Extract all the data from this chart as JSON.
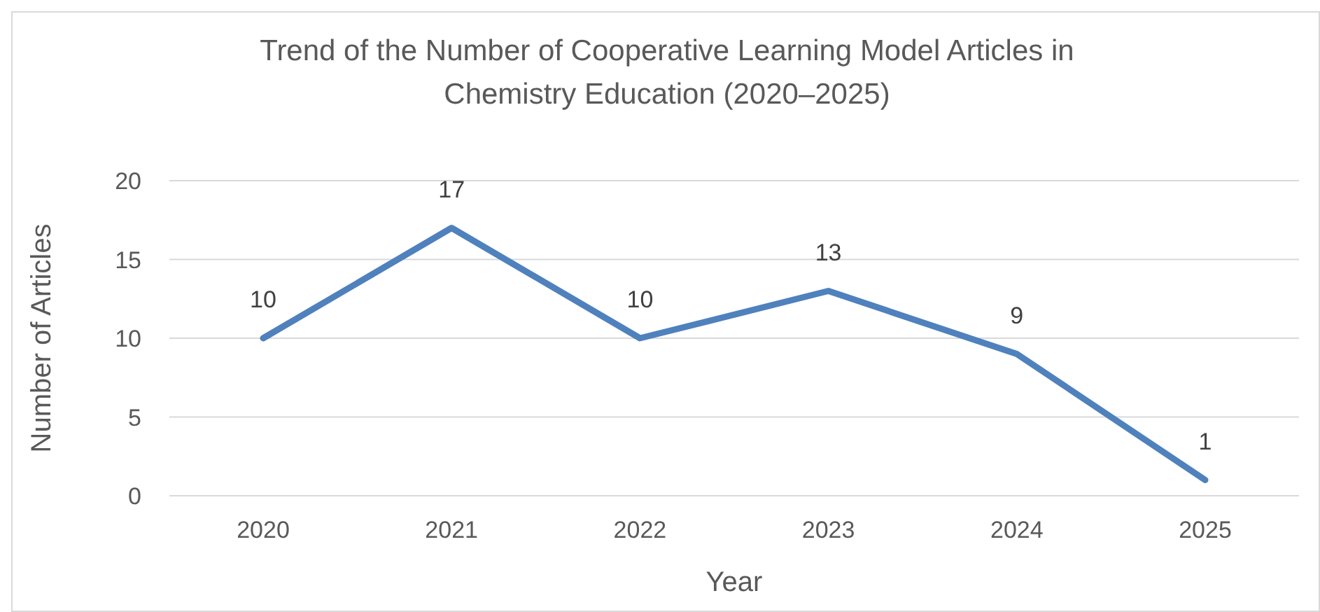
{
  "chart_data": {
    "type": "line",
    "title": "Trend of the Number of Cooperative Learning Model Articles in Chemistry Education (2020–2025)",
    "xlabel": "Year",
    "ylabel": "Number of Articles",
    "categories": [
      "2020",
      "2021",
      "2022",
      "2023",
      "2024",
      "2025"
    ],
    "series": [
      {
        "color": "#4f81bd",
        "values": [
          10,
          17,
          10,
          13,
          9,
          1
        ]
      }
    ],
    "ylim": [
      0,
      20
    ],
    "yticks": [
      0,
      5,
      10,
      15,
      20
    ],
    "grid": "y",
    "data_labels": true,
    "marker": "none",
    "line_style": "solid",
    "legend": false
  }
}
